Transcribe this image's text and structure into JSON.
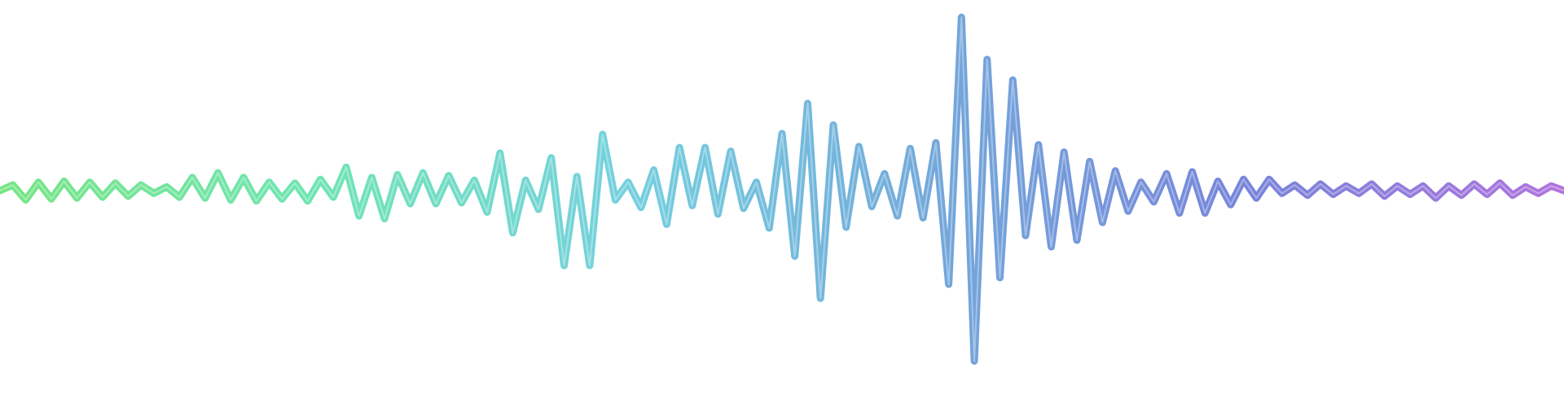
{
  "waveform": {
    "gradient_colors": [
      "#5fe06f",
      "#56e0a6",
      "#5cc8d8",
      "#5a98d4",
      "#5f6fd4",
      "#a35ad8"
    ],
    "samples": [
      0,
      0.06,
      -0.1,
      0.09,
      -0.09,
      0.1,
      -0.08,
      0.09,
      -0.07,
      0.08,
      -0.06,
      0.06,
      -0.03,
      0.04,
      -0.07,
      0.14,
      -0.08,
      0.19,
      -0.1,
      0.14,
      -0.11,
      0.09,
      -0.09,
      0.08,
      -0.11,
      0.12,
      -0.07,
      0.25,
      -0.27,
      0.14,
      -0.3,
      0.17,
      -0.14,
      0.19,
      -0.14,
      0.16,
      -0.13,
      0.11,
      -0.23,
      0.4,
      -0.45,
      0.11,
      -0.2,
      0.35,
      -0.8,
      0.15,
      -0.8,
      0.6,
      -0.1,
      0.09,
      -0.18,
      0.22,
      -0.36,
      0.46,
      -0.16,
      0.46,
      -0.25,
      0.42,
      -0.19,
      0.09,
      -0.4,
      0.61,
      -0.7,
      0.93,
      -1.15,
      0.7,
      -0.39,
      0.47,
      -0.17,
      0.18,
      -0.27,
      0.45,
      -0.29,
      0.51,
      -1.0,
      1.85,
      -1.82,
      1.4,
      -0.93,
      1.18,
      -0.48,
      0.49,
      -0.6,
      0.41,
      -0.53,
      0.31,
      -0.34,
      0.21,
      -0.22,
      0.09,
      -0.12,
      0.18,
      -0.24,
      0.2,
      -0.24,
      0.1,
      -0.15,
      0.12,
      -0.08,
      0.12,
      -0.03,
      0.06,
      -0.05,
      0.07,
      -0.04,
      0.05,
      -0.03,
      0.07,
      -0.06,
      0.05,
      -0.04,
      0.05,
      -0.08,
      0.05,
      -0.05,
      0.07,
      -0.04,
      0.08,
      -0.05,
      0.04,
      -0.03,
      0.05,
      0
    ]
  }
}
